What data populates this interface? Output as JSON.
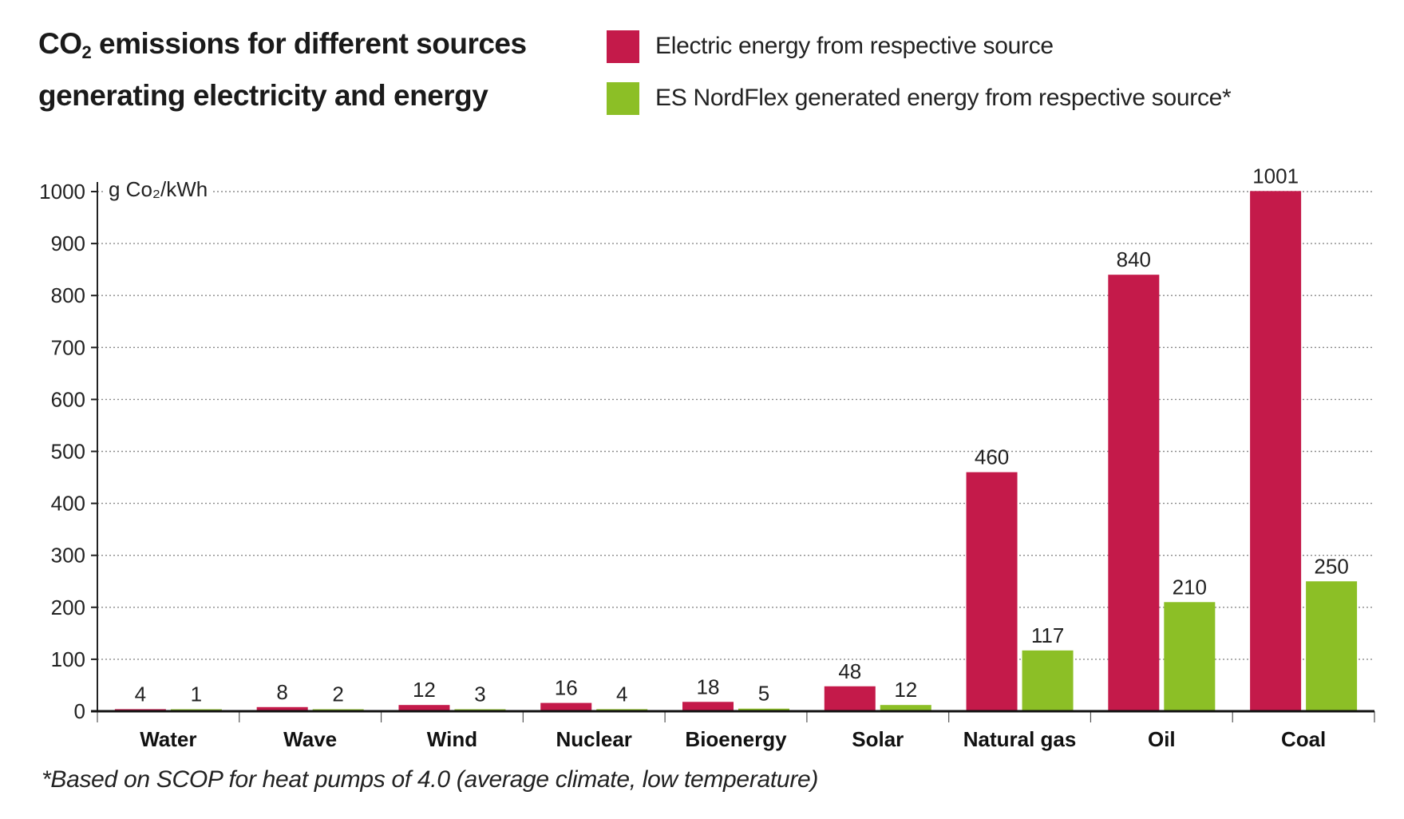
{
  "title": {
    "prefix": "CO",
    "sub": "2",
    "line1_rest": " emissions for different sources",
    "line2": "generating electricity and energy"
  },
  "legend": [
    {
      "label": "Electric energy from respective source",
      "color": "#c41a4a"
    },
    {
      "label": "ES NordFlex generated energy from respective source*",
      "color": "#8cbf26"
    }
  ],
  "footnote": "*Based on SCOP for heat pumps of 4.0 (average climate, low temperature)",
  "chart_data": {
    "type": "bar",
    "ylabel": "g Co₂/kWh",
    "ylim": [
      0,
      1000
    ],
    "yticks": [
      0,
      100,
      200,
      300,
      400,
      500,
      600,
      700,
      800,
      900,
      1000
    ],
    "grid": "horizontal dotted",
    "categories": [
      "Water",
      "Wave",
      "Wind",
      "Nuclear",
      "Bioenergy",
      "Solar",
      "Natural gas",
      "Oil",
      "Coal"
    ],
    "series": [
      {
        "name": "Electric energy from respective source",
        "color": "#c41a4a",
        "values": [
          4,
          8,
          12,
          16,
          18,
          48,
          460,
          840,
          1001
        ]
      },
      {
        "name": "ES NordFlex generated energy from respective source*",
        "color": "#8cbf26",
        "values": [
          1,
          2,
          3,
          4,
          5,
          12,
          117,
          210,
          250
        ]
      }
    ]
  }
}
